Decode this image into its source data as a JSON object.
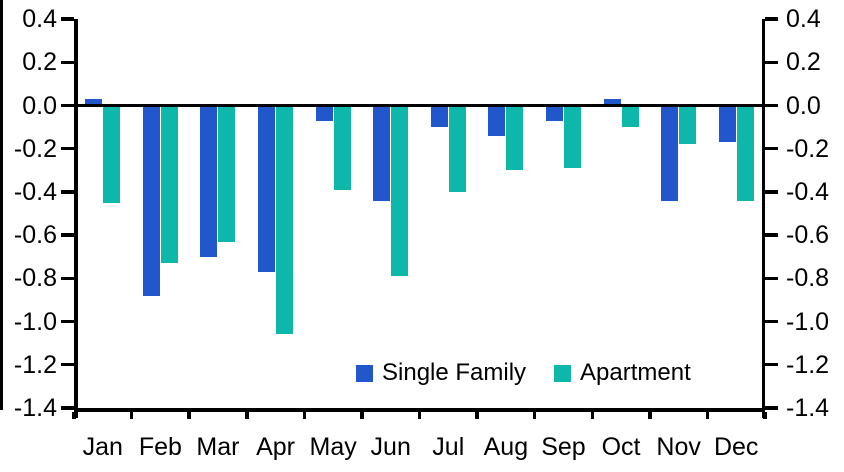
{
  "chart_data": {
    "type": "bar",
    "title": "",
    "categories": [
      "Jan",
      "Feb",
      "Mar",
      "Apr",
      "May",
      "Jun",
      "Jul",
      "Aug",
      "Sep",
      "Oct",
      "Nov",
      "Dec"
    ],
    "series": [
      {
        "name": "Single Family",
        "color": "#2256cb",
        "values": [
          0.03,
          -0.88,
          -0.7,
          -0.77,
          -0.07,
          -0.44,
          -0.1,
          -0.14,
          -0.07,
          0.03,
          -0.44,
          -0.17
        ]
      },
      {
        "name": "Apartment",
        "color": "#0db8ab",
        "values": [
          -0.45,
          -0.73,
          -0.63,
          -1.06,
          -0.39,
          -0.79,
          -0.4,
          -0.3,
          -0.29,
          -0.1,
          -0.18,
          -0.44
        ]
      }
    ],
    "xlabel": "",
    "ylabel": "",
    "ylim": [
      -1.4,
      0.4
    ],
    "ytick_step": 0.2,
    "ytick_labels": [
      "0.4",
      "0.2",
      "0.0",
      "-0.2",
      "-0.4",
      "-0.6",
      "-0.8",
      "-1.0",
      "-1.2",
      "-1.4"
    ],
    "dual_y_axis": true,
    "grid": false,
    "zero_line": true,
    "legend_position": "inside-bottom-center"
  },
  "colors": {
    "single_family": "#2256cb",
    "apartment": "#0db8ab",
    "axis": "#000000",
    "background": "#ffffff"
  }
}
